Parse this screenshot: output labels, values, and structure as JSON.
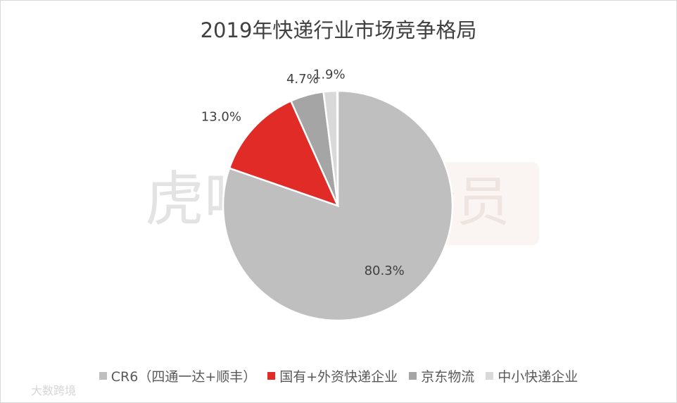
{
  "chart_data": {
    "type": "pie",
    "title": "2019年快递行业市场竞争格局",
    "categories": [
      "CR6（四通一达+顺丰）",
      "国有+外资快递企业",
      "京东物流",
      "中小快递企业"
    ],
    "values": [
      80.3,
      13.0,
      4.7,
      1.9
    ],
    "value_labels": [
      "80.3%",
      "13.0%",
      "4.7%",
      "1.9%"
    ],
    "colors": [
      "#bfbfbf",
      "#e02b27",
      "#a5a5a5",
      "#d9d9d9"
    ],
    "legend": "bottom",
    "watermarks": [
      "虎嗅",
      "Pro会员",
      "大数跨境"
    ]
  }
}
